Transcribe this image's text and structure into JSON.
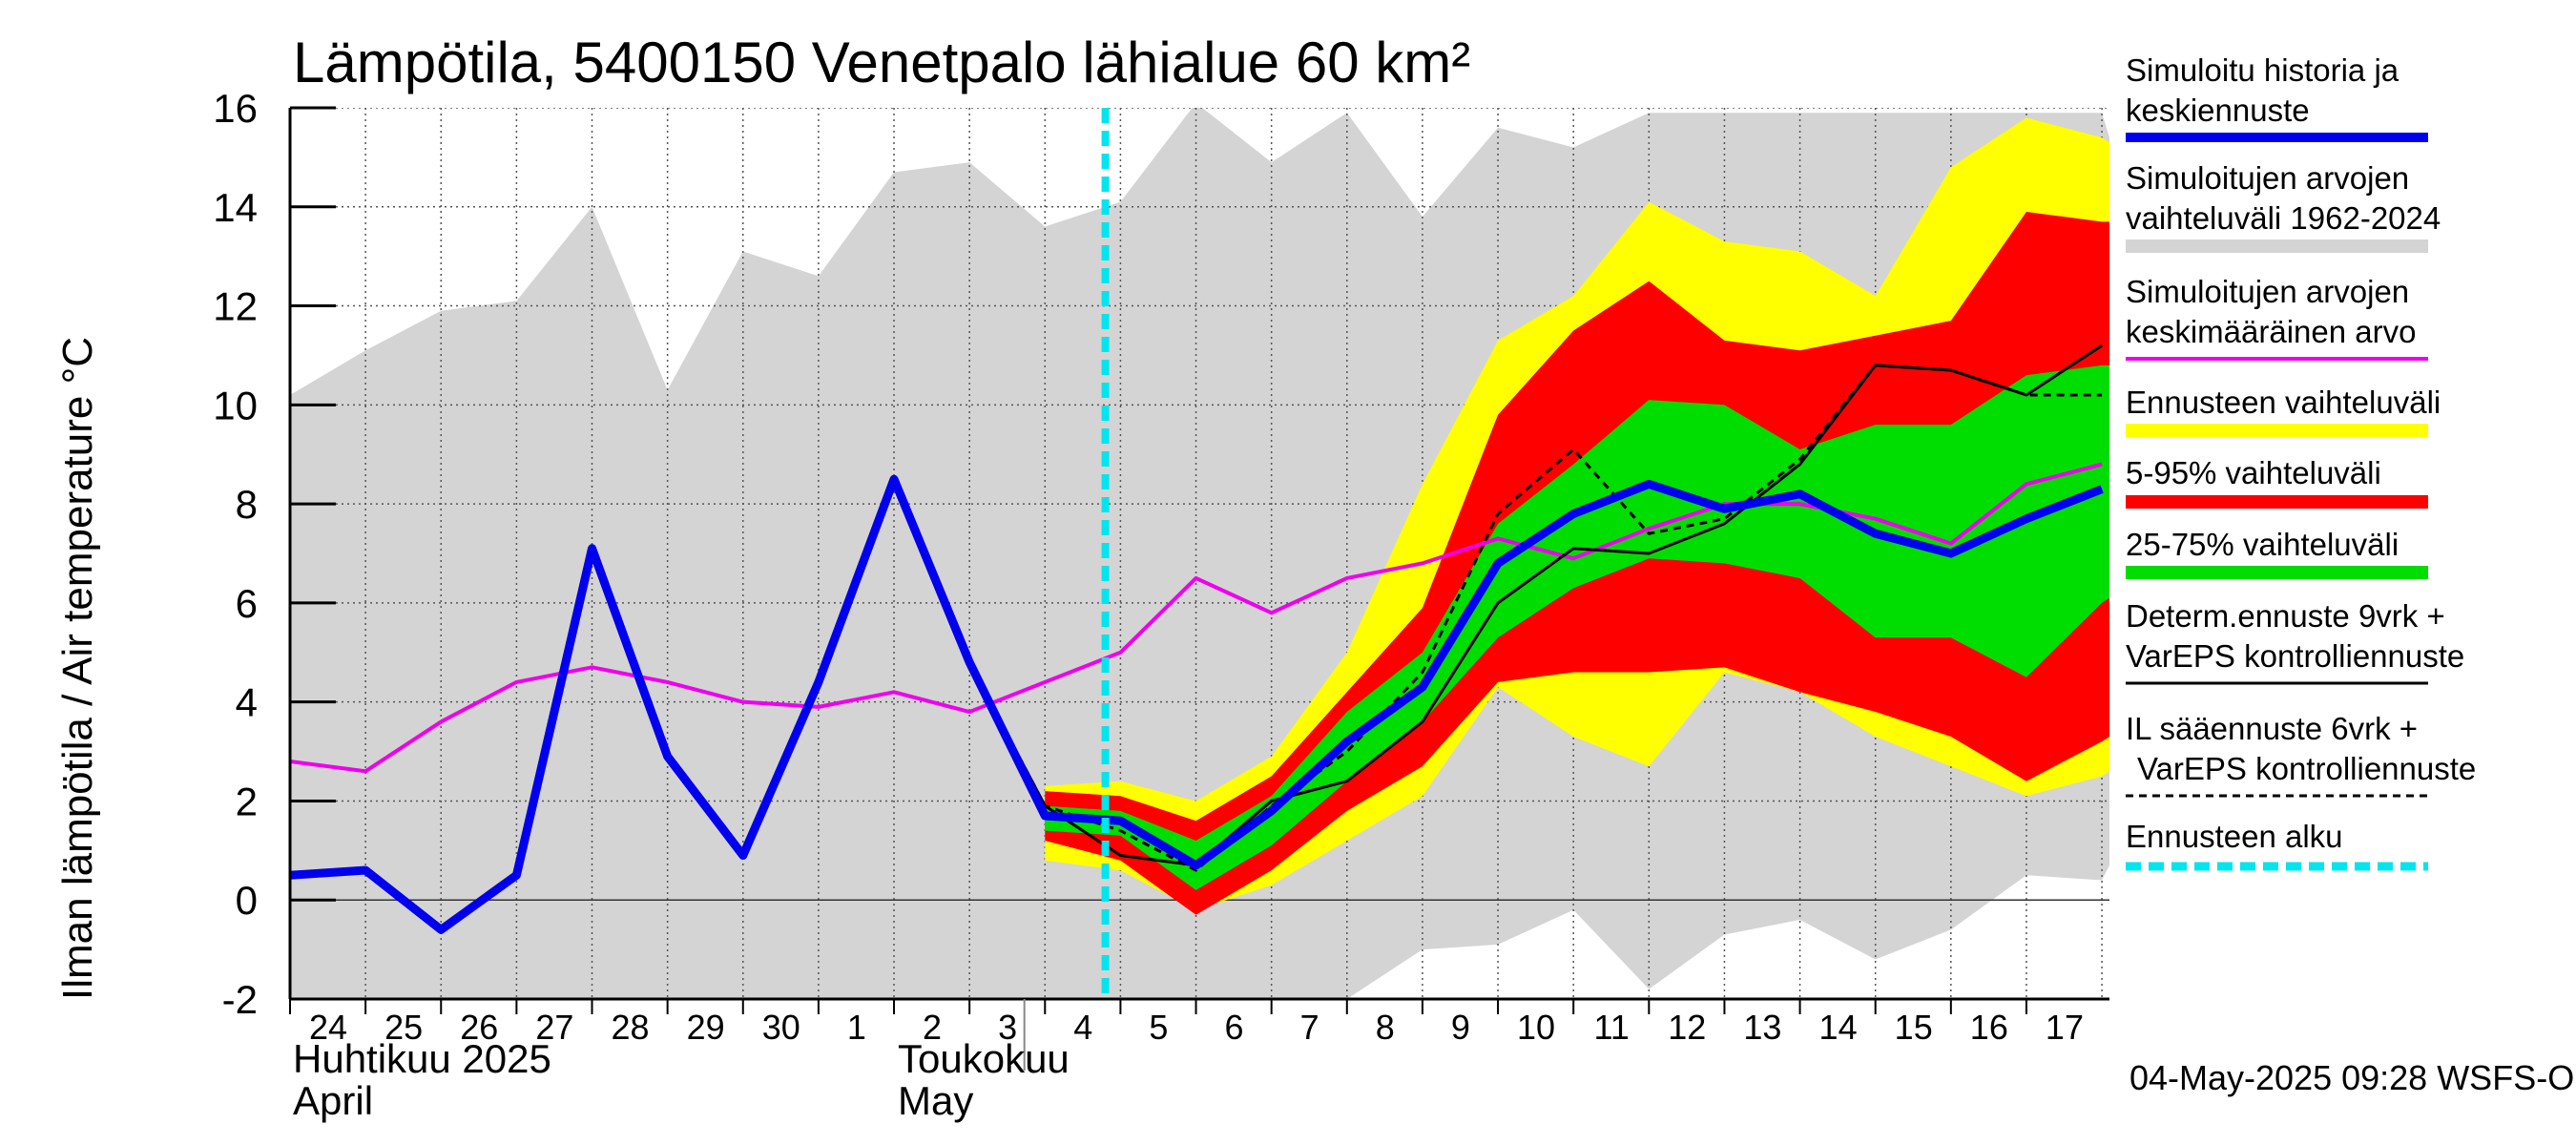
{
  "chart_data": {
    "type": "area",
    "title": "Lämpötila, 5400150 Venetpalo lähialue 60 km²",
    "ylabel": "Ilman lämpötila / Air temperature   °C",
    "ylim": [
      -2,
      16
    ],
    "yticks": [
      -2,
      0,
      2,
      4,
      6,
      8,
      10,
      12,
      14,
      16
    ],
    "grid": true,
    "legend_position": "right",
    "x_day_labels": [
      "24",
      "25",
      "26",
      "27",
      "28",
      "29",
      "30",
      "1",
      "2",
      "3",
      "4",
      "5",
      "6",
      "7",
      "8",
      "9",
      "10",
      "11",
      "12",
      "13",
      "14",
      "15",
      "16",
      "17"
    ],
    "month_labels": {
      "april_fi": "Huhtikuu  2025",
      "april_en": "April",
      "may_fi": "Toukokuu",
      "may_en": "May"
    },
    "forecast_start_day": 10.8,
    "colors": {
      "history_range": "#d4d4d4",
      "ensemble_range": "#ffff00",
      "p5_95": "#ff0000",
      "p25_75": "#00dd00",
      "simulated": "#0000ee",
      "mean": "#ee00ee",
      "determ": "#000000",
      "il": "#000000",
      "forecast_start": "#00e5ee"
    },
    "legend": {
      "simulated": "Simuloitu historia ja keskiennuste",
      "history_range": "Simuloitujen arvojen vaihteluväli 1962-2024",
      "mean": "Simuloitujen arvojen keskimääräinen arvo",
      "ensemble_range": "Ennusteen vaihteluväli",
      "p5_95": "5-95% vaihteluväli",
      "p25_75": "25-75% vaihteluväli",
      "determ": "Determ.ennuste 9vrk + VarEPS kontrolliennuste",
      "il": "IL sääennuste 6vrk  + VarEPS kontrolliennuste",
      "forecast_start": "Ennusteen alku"
    },
    "series": {
      "history_range": {
        "x": [
          0,
          1,
          2,
          3,
          4,
          5,
          6,
          7,
          8,
          9,
          10,
          11,
          12,
          13,
          14,
          15,
          16,
          17,
          18,
          19,
          20,
          21,
          22,
          23,
          24,
          24.1
        ],
        "low": [
          -2,
          -2,
          -2,
          -2,
          -2,
          -2,
          -2,
          -2,
          -2,
          -2,
          -2,
          -2,
          -2,
          -2,
          -2,
          -1,
          -0.9,
          -0.2,
          -1.8,
          -0.7,
          -0.4,
          -1.2,
          -0.6,
          0.5,
          0.4,
          0.7
        ],
        "high": [
          10.2,
          11.1,
          11.9,
          12.1,
          14.0,
          10.3,
          13.1,
          12.6,
          14.7,
          14.9,
          13.6,
          14.1,
          16.1,
          14.9,
          15.9,
          13.8,
          15.6,
          15.2,
          15.9,
          15.9,
          15.9,
          15.9,
          15.9,
          15.9,
          15.9,
          15.4
        ]
      },
      "ensemble_range": {
        "x": [
          10,
          11,
          12,
          13,
          14,
          15,
          16,
          17,
          18,
          19,
          20,
          21,
          22,
          23,
          24,
          24.1
        ],
        "low": [
          0.8,
          0.6,
          -0.2,
          0.3,
          1.2,
          2.1,
          4.3,
          3.3,
          2.7,
          4.6,
          4.2,
          3.3,
          2.7,
          2.1,
          2.5,
          2.6
        ],
        "high": [
          2.3,
          2.4,
          2.0,
          2.9,
          5.0,
          8.4,
          11.3,
          12.2,
          14.1,
          13.3,
          13.1,
          12.2,
          14.8,
          15.8,
          15.4,
          15.3
        ]
      },
      "p5_95": {
        "x": [
          10,
          11,
          12,
          13,
          14,
          15,
          16,
          17,
          18,
          19,
          20,
          21,
          22,
          23,
          24,
          24.1
        ],
        "low": [
          1.2,
          0.8,
          -0.3,
          0.6,
          1.8,
          2.7,
          4.4,
          4.6,
          4.6,
          4.7,
          4.2,
          3.8,
          3.3,
          2.4,
          3.2,
          3.3
        ],
        "high": [
          2.2,
          2.1,
          1.6,
          2.5,
          4.2,
          5.9,
          9.8,
          11.5,
          12.5,
          11.3,
          11.1,
          11.4,
          11.7,
          13.9,
          13.7,
          13.7
        ]
      },
      "p25_75": {
        "x": [
          10,
          11,
          12,
          13,
          14,
          15,
          16,
          17,
          18,
          19,
          20,
          21,
          22,
          23,
          24,
          24.1
        ],
        "low": [
          1.4,
          1.3,
          0.2,
          1.1,
          2.4,
          3.6,
          5.3,
          6.3,
          6.9,
          6.8,
          6.5,
          5.3,
          5.3,
          4.5,
          6.0,
          6.1
        ],
        "high": [
          1.9,
          1.8,
          1.2,
          2.1,
          3.8,
          5.0,
          7.6,
          8.8,
          10.1,
          10.0,
          9.1,
          9.6,
          9.6,
          10.6,
          10.8,
          10.8
        ]
      },
      "simulated": {
        "x": [
          0,
          1,
          2,
          3,
          4,
          5,
          6,
          7,
          8,
          9,
          10,
          11,
          12,
          13,
          14,
          15,
          16,
          17,
          18,
          19,
          20,
          21,
          22,
          23,
          24
        ],
        "y": [
          0.5,
          0.6,
          -0.6,
          0.5,
          7.1,
          2.9,
          0.9,
          4.4,
          8.5,
          4.8,
          1.7,
          1.6,
          0.7,
          1.8,
          3.2,
          4.3,
          6.8,
          7.8,
          8.4,
          7.9,
          8.2,
          7.4,
          7.0,
          7.7,
          8.3
        ]
      },
      "mean": {
        "x": [
          0,
          1,
          2,
          3,
          4,
          5,
          6,
          7,
          8,
          9,
          10,
          11,
          12,
          13,
          14,
          15,
          16,
          17,
          18,
          19,
          20,
          21,
          22,
          23,
          24
        ],
        "y": [
          2.8,
          2.6,
          3.6,
          4.4,
          4.7,
          4.4,
          4.0,
          3.9,
          4.2,
          3.8,
          4.4,
          5.0,
          6.5,
          5.8,
          6.5,
          6.8,
          7.3,
          6.9,
          7.5,
          8.0,
          8.0,
          7.7,
          7.2,
          8.4,
          8.8
        ]
      },
      "determ": {
        "x": [
          7,
          8,
          9,
          10,
          11,
          12,
          13,
          14,
          15,
          16,
          17,
          18,
          19,
          20,
          21,
          22,
          23,
          24
        ],
        "y": [
          4.4,
          8.5,
          4.8,
          1.9,
          0.9,
          0.7,
          2.0,
          2.4,
          3.6,
          6.0,
          7.1,
          7.0,
          7.6,
          8.8,
          10.8,
          10.7,
          10.2,
          11.2
        ]
      },
      "il": {
        "x": [
          7,
          8,
          9,
          10,
          11,
          12,
          13,
          14,
          15,
          16,
          17,
          18,
          19,
          20,
          21,
          22,
          23,
          24
        ],
        "y": [
          4.4,
          8.5,
          4.8,
          1.9,
          1.4,
          0.6,
          1.9,
          3.0,
          4.6,
          7.8,
          9.1,
          7.4,
          7.7,
          8.9,
          10.8,
          10.7,
          10.2,
          10.2
        ]
      }
    }
  },
  "timestamp": "04-May-2025 09:28 WSFS-O"
}
